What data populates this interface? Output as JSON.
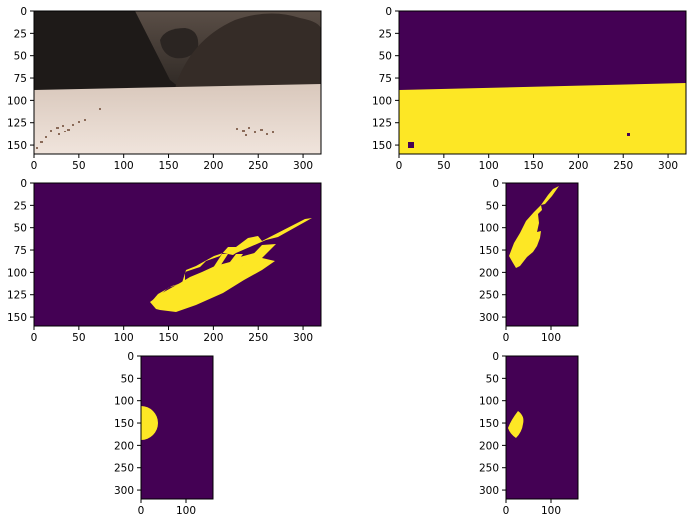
{
  "colors": {
    "background_class": "#440154",
    "foreground_class": "#fde725",
    "frame": "#000000",
    "terrain_sky": "#3a3430",
    "terrain_ground": "#e8d8cc"
  },
  "chart_data": [
    {
      "type": "heatmap",
      "name": "camera-image",
      "xlim": [
        0,
        320
      ],
      "ylim": [
        160,
        0
      ],
      "xticks": [
        "0",
        "50",
        "100",
        "150",
        "200",
        "250",
        "300"
      ],
      "yticks": [
        "0",
        "25",
        "50",
        "75",
        "100",
        "125",
        "150"
      ]
    },
    {
      "type": "heatmap",
      "name": "navigable-threshold",
      "xlim": [
        0,
        320
      ],
      "ylim": [
        160,
        0
      ],
      "xticks": [
        "0",
        "50",
        "100",
        "150",
        "200",
        "250",
        "300"
      ],
      "yticks": [
        "0",
        "25",
        "50",
        "75",
        "100",
        "125",
        "150"
      ]
    },
    {
      "type": "heatmap",
      "name": "warped-mask",
      "xlim": [
        0,
        320
      ],
      "ylim": [
        160,
        0
      ],
      "xticks": [
        "0",
        "50",
        "100",
        "150",
        "200",
        "250",
        "300"
      ],
      "yticks": [
        "0",
        "25",
        "50",
        "75",
        "100",
        "125",
        "150"
      ]
    },
    {
      "type": "heatmap",
      "name": "rover-coords-a",
      "xlim": [
        0,
        160
      ],
      "ylim": [
        320,
        0
      ],
      "xticks": [
        "0",
        "100"
      ],
      "yticks": [
        "0",
        "50",
        "100",
        "150",
        "200",
        "250",
        "300"
      ]
    },
    {
      "type": "heatmap",
      "name": "half-disc-a",
      "xlim": [
        0,
        160
      ],
      "ylim": [
        320,
        0
      ],
      "xticks": [
        "0",
        "100"
      ],
      "yticks": [
        "0",
        "50",
        "100",
        "150",
        "200",
        "250",
        "300"
      ]
    },
    {
      "type": "heatmap",
      "name": "half-disc-b",
      "xlim": [
        0,
        160
      ],
      "ylim": [
        320,
        0
      ],
      "xticks": [
        "0",
        "100"
      ],
      "yticks": [
        "0",
        "50",
        "100",
        "150",
        "200",
        "250",
        "300"
      ]
    }
  ]
}
